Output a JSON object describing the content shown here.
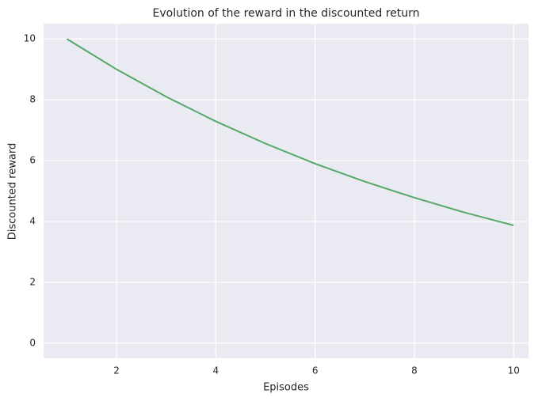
{
  "chart_data": {
    "type": "line",
    "title": "Evolution of the reward in the discounted return",
    "xlabel": "Episodes",
    "ylabel": "Discounted reward",
    "x": [
      1,
      2,
      3,
      4,
      5,
      6,
      7,
      8,
      9,
      10
    ],
    "series": [
      {
        "name": "Discounted reward",
        "color": "#55a868",
        "values": [
          10,
          9,
          8.1,
          7.29,
          6.56,
          5.9,
          5.31,
          4.78,
          4.3,
          3.87
        ]
      }
    ],
    "xlim": [
      0.53,
      10.3
    ],
    "ylim": [
      -0.5,
      10.5
    ],
    "xticks": [
      2,
      4,
      6,
      8,
      10
    ],
    "yticks": [
      0,
      2,
      4,
      6,
      8,
      10
    ],
    "grid": true,
    "background": "#eaeaf2"
  }
}
